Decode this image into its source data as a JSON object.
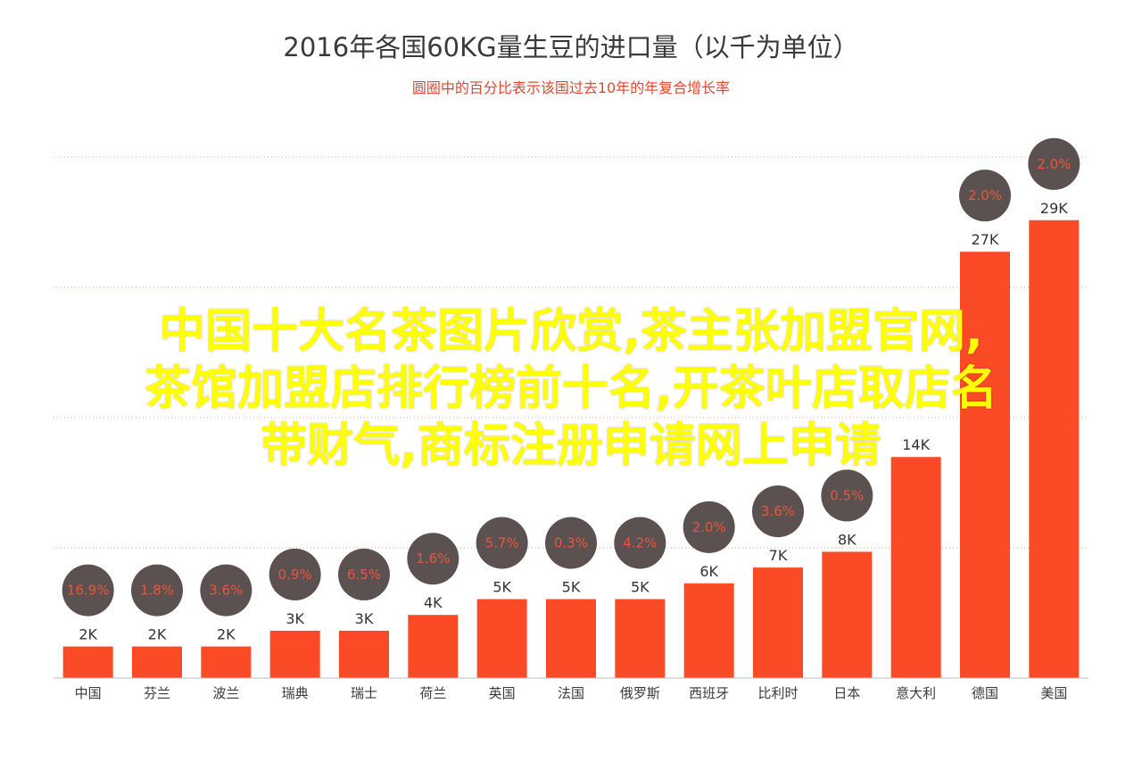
{
  "chart_data": {
    "type": "bar",
    "title": "2016年各国60KG量生豆的进口量（以千为单位）",
    "subtitle": "圆圈中的百分比表示该国过去10年的年复合增长率",
    "categories": [
      "中国",
      "芬兰",
      "波兰",
      "瑞典",
      "瑞士",
      "荷兰",
      "英国",
      "法国",
      "俄罗斯",
      "西班牙",
      "比利时",
      "日本",
      "意大利",
      "德国",
      "美国"
    ],
    "values": [
      2,
      2,
      2,
      3,
      3,
      4,
      5,
      5,
      5,
      6,
      7,
      8,
      14,
      27,
      29
    ],
    "value_labels": [
      "2K",
      "2K",
      "2K",
      "3K",
      "3K",
      "4K",
      "5K",
      "5K",
      "5K",
      "6K",
      "7K",
      "8K",
      "14K",
      "27K",
      "29K"
    ],
    "growth_labels": [
      "16.9%",
      "1.8%",
      "3.6%",
      "0.9%",
      "6.5%",
      "1.6%",
      "5.7%",
      "0.3%",
      "4.2%",
      "2.0%",
      "3.6%",
      "0.5%",
      "",
      "2.0%",
      "2.0%"
    ],
    "ylim": [
      0,
      33
    ],
    "grid": true,
    "colors": {
      "bar": "#fb4a26",
      "circle": "#5b5150",
      "circle_text": "#e8563c",
      "grid": "#e2a08f"
    }
  },
  "overlay": {
    "lines": [
      "中国十大名茶图片欣赏,茶主张加盟官网,",
      "茶馆加盟店排行榜前十名,开茶叶店取店名",
      "带财气,商标注册申请网上申请"
    ],
    "color": "#ffff00"
  }
}
